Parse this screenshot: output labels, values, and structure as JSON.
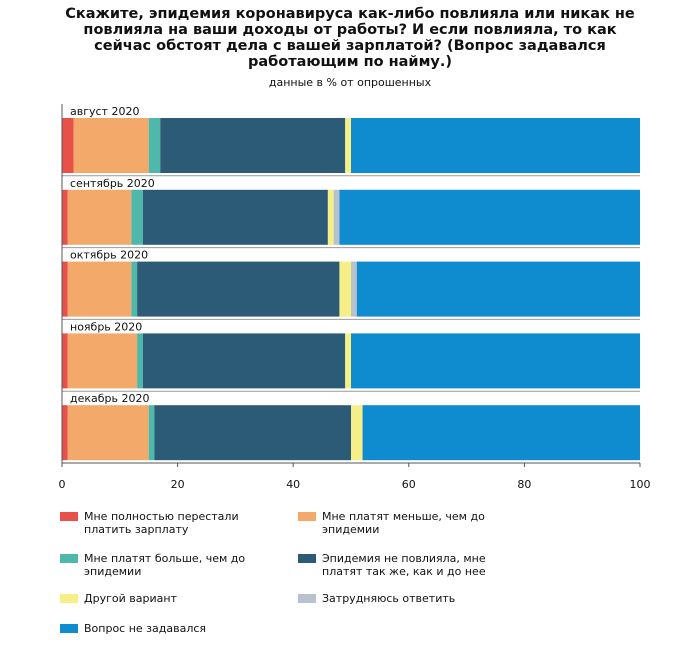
{
  "chart_data": {
    "type": "bar",
    "orientation": "horizontal",
    "stacked": true,
    "title": "Скажите, эпидемия коронавируса как-либо повлияла или никак не повлияла на ваши доходы от работы? И если повлияла, то как сейчас обстоят дела с вашей зарплатой? (Вопрос задавался работающим по найму.)",
    "subtitle": "данные в % от опрошенных",
    "categories": [
      "август 2020",
      "сентябрь 2020",
      "октябрь 2020",
      "ноябрь 2020",
      "декабрь 2020"
    ],
    "xlim": [
      0,
      100
    ],
    "xticks": [
      "0",
      "20",
      "40",
      "60",
      "80",
      "100"
    ],
    "grid": false,
    "legend_position": "bottom",
    "series": [
      {
        "name": "Мне полностью перестали платить зарплату",
        "color": "#e8504a",
        "values": [
          2,
          1,
          1,
          1,
          1
        ]
      },
      {
        "name": "Мне платят меньше, чем до эпидемии",
        "color": "#f2a96a",
        "values": [
          13,
          11,
          11,
          12,
          14
        ]
      },
      {
        "name": "Мне платят больше, чем до эпидемии",
        "color": "#4fb8aa",
        "values": [
          2,
          2,
          1,
          1,
          1
        ]
      },
      {
        "name": "Эпидемия не повлияла, мне платят так же, как и до нее",
        "color": "#2b5b77",
        "values": [
          32,
          32,
          35,
          35,
          34
        ]
      },
      {
        "name": "Другой вариант",
        "color": "#f6ee86",
        "values": [
          1,
          1,
          2,
          1,
          2
        ]
      },
      {
        "name": "Затрудняюсь ответить",
        "color": "#b7c2cc",
        "values": [
          0,
          1,
          1,
          0,
          0
        ]
      },
      {
        "name": "Вопрос не задавался",
        "color": "#0f8bd0",
        "values": [
          50,
          52,
          49,
          50,
          48
        ]
      }
    ]
  }
}
